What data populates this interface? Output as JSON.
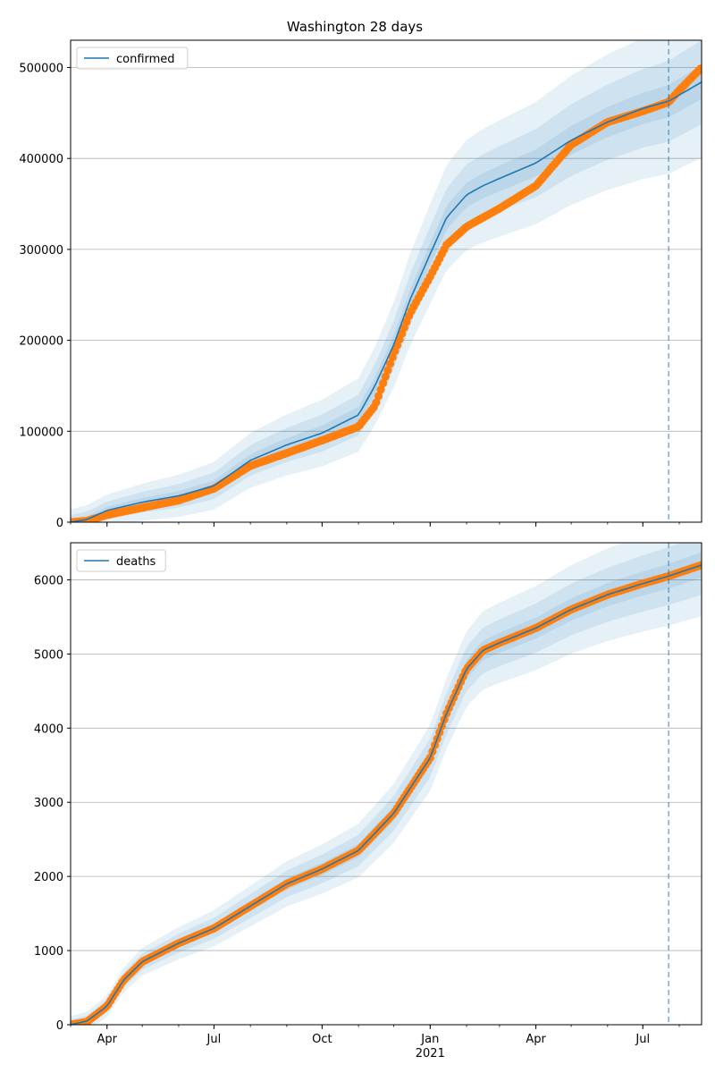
{
  "chart_data": [
    {
      "type": "line",
      "title": "Washington 28 days",
      "ylim": [
        0,
        530000
      ],
      "yticks": [
        0,
        100000,
        200000,
        300000,
        400000,
        500000
      ],
      "ytick_labels": [
        "0",
        "100000",
        "200000",
        "300000",
        "400000",
        "500000"
      ],
      "xlim": [
        "2020-03-01",
        "2021-08-20"
      ],
      "grid": "y",
      "legend": {
        "placement": "top-left"
      },
      "colors": {
        "model": "#1f77b4",
        "observed": "#ff7f0e",
        "band": "#1f77b4",
        "vline": "#1f77b4"
      },
      "forecast_start": "2021-07-23",
      "series": [
        {
          "name": "confirmed",
          "role": "model",
          "x": [
            "2020-03-01",
            "2020-03-15",
            "2020-04-01",
            "2020-05-01",
            "2020-06-01",
            "2020-07-01",
            "2020-08-01",
            "2020-09-01",
            "2020-10-01",
            "2020-11-01",
            "2020-11-15",
            "2020-12-01",
            "2020-12-15",
            "2021-01-01",
            "2021-01-15",
            "2021-02-01",
            "2021-02-15",
            "2021-03-01",
            "2021-04-01",
            "2021-05-01",
            "2021-06-01",
            "2021-07-01",
            "2021-07-23",
            "2021-08-20"
          ],
          "y": [
            0,
            3000,
            13000,
            22000,
            29000,
            40000,
            68000,
            85000,
            98000,
            118000,
            150000,
            195000,
            245000,
            295000,
            335000,
            360000,
            370000,
            378000,
            395000,
            420000,
            440000,
            455000,
            463000,
            484000
          ]
        },
        {
          "name": "",
          "role": "observed",
          "x": [
            "2020-03-01",
            "2020-03-15",
            "2020-04-01",
            "2020-05-01",
            "2020-06-01",
            "2020-07-01",
            "2020-08-01",
            "2020-09-01",
            "2020-10-01",
            "2020-11-01",
            "2020-11-15",
            "2020-12-01",
            "2020-12-15",
            "2021-01-01",
            "2021-01-15",
            "2021-02-01",
            "2021-02-15",
            "2021-03-01",
            "2021-04-01",
            "2021-05-01",
            "2021-06-01",
            "2021-07-01",
            "2021-07-23",
            "2021-08-01",
            "2021-08-20"
          ],
          "y": [
            0,
            1500,
            8000,
            16000,
            24000,
            37000,
            62000,
            76000,
            90000,
            105000,
            128000,
            185000,
            230000,
            270000,
            305000,
            325000,
            335000,
            345000,
            370000,
            415000,
            440000,
            452000,
            462000,
            475000,
            500000
          ]
        }
      ],
      "bands": {
        "x": [
          "2020-03-01",
          "2020-03-15",
          "2020-04-01",
          "2020-05-01",
          "2020-06-01",
          "2020-07-01",
          "2020-08-01",
          "2020-09-01",
          "2020-10-01",
          "2020-11-01",
          "2020-11-15",
          "2020-12-01",
          "2020-12-15",
          "2021-01-01",
          "2021-01-15",
          "2021-02-01",
          "2021-02-15",
          "2021-03-01",
          "2021-04-01",
          "2021-05-01",
          "2021-06-01",
          "2021-07-01",
          "2021-07-23",
          "2021-08-20"
        ],
        "widths": [
          0.02,
          0.05,
          0.09
        ]
      }
    },
    {
      "type": "line",
      "title": "",
      "ylim": [
        0,
        6500
      ],
      "yticks": [
        0,
        1000,
        2000,
        3000,
        4000,
        5000,
        6000
      ],
      "ytick_labels": [
        "0",
        "1000",
        "2000",
        "3000",
        "4000",
        "5000",
        "6000"
      ],
      "xlim": [
        "2020-03-01",
        "2021-08-20"
      ],
      "xticks": [
        "2020-04-01",
        "2020-07-01",
        "2020-10-01",
        "2021-01-01",
        "2021-04-01",
        "2021-07-01"
      ],
      "xtick_labels": [
        "Apr",
        "Jul",
        "Oct",
        "Jan",
        "Apr",
        "Jul"
      ],
      "xtick_sublabels": [
        "",
        "",
        "",
        "2021",
        "",
        ""
      ],
      "grid": "y",
      "legend": {
        "placement": "top-left"
      },
      "colors": {
        "model": "#1f77b4",
        "observed": "#ff7f0e",
        "band": "#1f77b4",
        "vline": "#1f77b4"
      },
      "forecast_start": "2021-07-23",
      "series": [
        {
          "name": "deaths",
          "role": "model",
          "x": [
            "2020-03-01",
            "2020-03-15",
            "2020-04-01",
            "2020-04-15",
            "2020-05-01",
            "2020-06-01",
            "2020-07-01",
            "2020-08-01",
            "2020-09-01",
            "2020-10-01",
            "2020-11-01",
            "2020-12-01",
            "2021-01-01",
            "2021-01-15",
            "2021-02-01",
            "2021-02-15",
            "2021-03-01",
            "2021-04-01",
            "2021-05-01",
            "2021-06-01",
            "2021-07-01",
            "2021-07-23",
            "2021-08-20"
          ],
          "y": [
            0,
            50,
            250,
            600,
            850,
            1100,
            1300,
            1600,
            1900,
            2100,
            2350,
            2850,
            3600,
            4200,
            4800,
            5050,
            5150,
            5350,
            5600,
            5800,
            5950,
            6050,
            6200
          ]
        },
        {
          "name": "",
          "role": "observed",
          "x": [
            "2020-03-01",
            "2020-03-15",
            "2020-04-01",
            "2020-04-15",
            "2020-05-01",
            "2020-06-01",
            "2020-07-01",
            "2020-08-01",
            "2020-09-01",
            "2020-10-01",
            "2020-11-01",
            "2020-12-01",
            "2021-01-01",
            "2021-01-15",
            "2021-02-01",
            "2021-02-15",
            "2021-03-01",
            "2021-04-01",
            "2021-05-01",
            "2021-06-01",
            "2021-07-01",
            "2021-07-23",
            "2021-08-20"
          ],
          "y": [
            0,
            40,
            250,
            600,
            850,
            1100,
            1300,
            1600,
            1900,
            2100,
            2350,
            2850,
            3600,
            4200,
            4800,
            5050,
            5150,
            5350,
            5600,
            5800,
            5950,
            6050,
            6200
          ]
        }
      ],
      "bands": {
        "x": [
          "2020-03-01",
          "2020-03-15",
          "2020-04-01",
          "2020-04-15",
          "2020-05-01",
          "2020-06-01",
          "2020-07-01",
          "2020-08-01",
          "2020-09-01",
          "2020-10-01",
          "2020-11-01",
          "2020-12-01",
          "2021-01-01",
          "2021-01-15",
          "2021-02-01",
          "2021-02-15",
          "2021-03-01",
          "2021-04-01",
          "2021-05-01",
          "2021-06-01",
          "2021-07-01",
          "2021-07-23",
          "2021-08-20"
        ],
        "widths": [
          0.015,
          0.035,
          0.06
        ]
      }
    }
  ]
}
